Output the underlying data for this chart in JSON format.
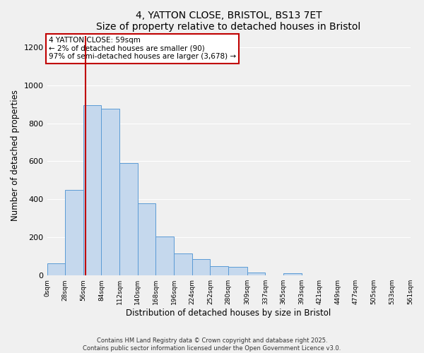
{
  "title": "4, YATTON CLOSE, BRISTOL, BS13 7ET",
  "subtitle": "Size of property relative to detached houses in Bristol",
  "xlabel": "Distribution of detached houses by size in Bristol",
  "ylabel": "Number of detached properties",
  "bar_values": [
    65,
    450,
    895,
    875,
    590,
    380,
    205,
    115,
    85,
    50,
    45,
    15,
    0,
    12,
    0,
    0,
    0,
    0,
    0,
    0
  ],
  "bin_labels": [
    "0sqm",
    "28sqm",
    "56sqm",
    "84sqm",
    "112sqm",
    "140sqm",
    "168sqm",
    "196sqm",
    "224sqm",
    "252sqm",
    "280sqm",
    "309sqm",
    "337sqm",
    "365sqm",
    "393sqm",
    "421sqm",
    "449sqm",
    "477sqm",
    "505sqm",
    "533sqm",
    "561sqm"
  ],
  "bin_edges": [
    0,
    28,
    56,
    84,
    112,
    140,
    168,
    196,
    224,
    252,
    280,
    309,
    337,
    365,
    393,
    421,
    449,
    477,
    505,
    533,
    561
  ],
  "bar_color": "#c5d8ed",
  "bar_edge_color": "#5b9bd5",
  "property_value": 59,
  "vline_color": "#c00000",
  "annotation_title": "4 YATTON CLOSE: 59sqm",
  "annotation_line1": "← 2% of detached houses are smaller (90)",
  "annotation_line2": "97% of semi-detached houses are larger (3,678) →",
  "annotation_box_color": "#ffffff",
  "annotation_box_edge": "#c00000",
  "ylim": [
    0,
    1260
  ],
  "yticks": [
    0,
    200,
    400,
    600,
    800,
    1000,
    1200
  ],
  "bg_color": "#f0f0f0",
  "grid_color": "#ffffff",
  "footer_line1": "Contains HM Land Registry data © Crown copyright and database right 2025.",
  "footer_line2": "Contains public sector information licensed under the Open Government Licence v3.0."
}
